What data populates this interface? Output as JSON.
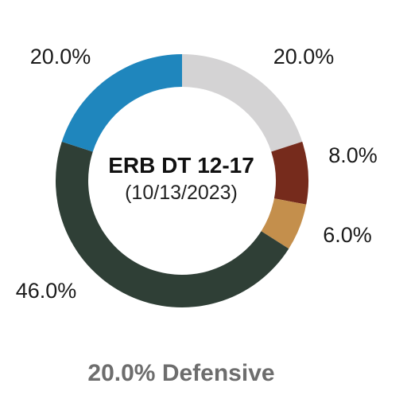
{
  "chart_data": {
    "type": "pie",
    "title": "ERB DT 12-17",
    "subtitle": "(10/13/2023)",
    "donut": true,
    "slices": [
      {
        "label": "20.0%",
        "value": 20.0,
        "color": "#d4d3d4"
      },
      {
        "label": "8.0%",
        "value": 8.0,
        "color": "#762b1c"
      },
      {
        "label": "6.0%",
        "value": 6.0,
        "color": "#c48f4c"
      },
      {
        "label": "46.0%",
        "value": 46.0,
        "color": "#2f3f36"
      },
      {
        "label": "20.0%",
        "value": 20.0,
        "color": "#1f86bd"
      }
    ],
    "footnote": "20.0% Defensive"
  }
}
